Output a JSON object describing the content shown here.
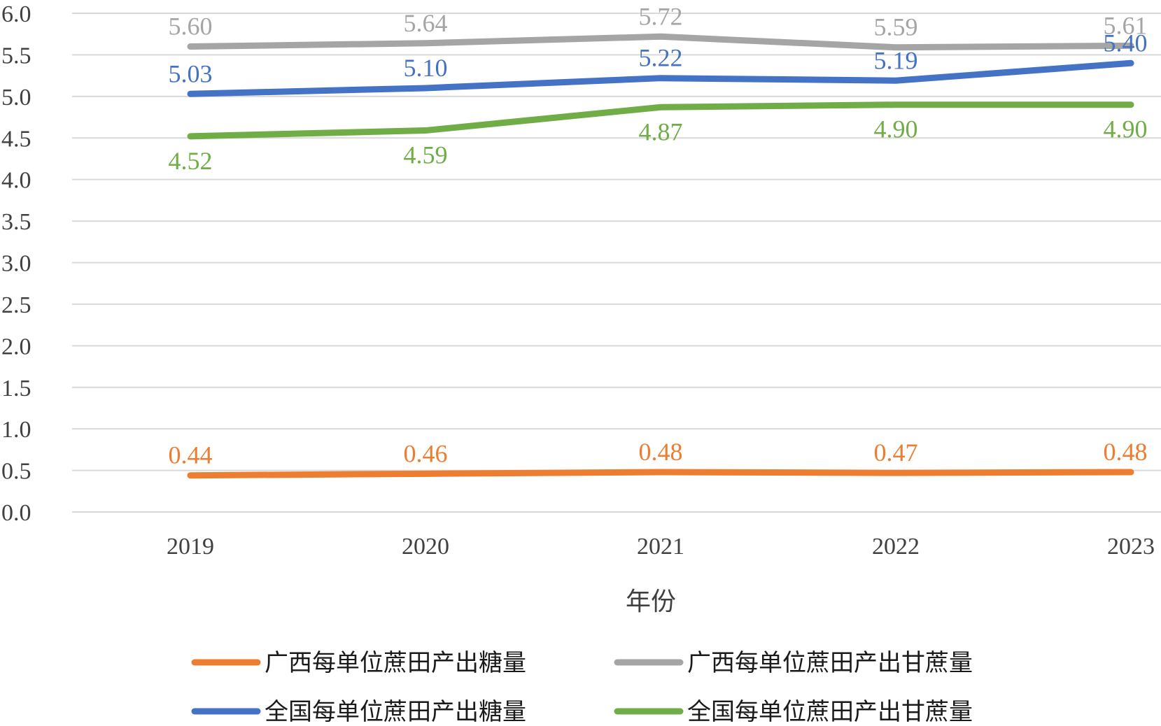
{
  "chart_data": {
    "type": "line",
    "title": "",
    "xlabel": "年份",
    "ylabel": "",
    "ylim": [
      0,
      6
    ],
    "ytick_step": 0.5,
    "yticks": [
      "0.0",
      "0.5",
      "1.0",
      "1.5",
      "2.0",
      "2.5",
      "3.0",
      "3.5",
      "4.0",
      "4.5",
      "5.0",
      "5.5",
      "6.0"
    ],
    "categories": [
      "2019",
      "2020",
      "2021",
      "2022",
      "2023"
    ],
    "grid": true,
    "legend_position": "bottom",
    "series": [
      {
        "name": "广西每单位蔗田产出糖量",
        "color": "#ED7D31",
        "values": [
          0.44,
          0.46,
          0.48,
          0.47,
          0.48
        ],
        "labels": [
          "0.44",
          "0.46",
          "0.48",
          "0.47",
          "0.48"
        ],
        "label_position": "above"
      },
      {
        "name": "广西每单位蔗田产出甘蔗量",
        "color": "#A5A5A5",
        "values": [
          5.6,
          5.64,
          5.72,
          5.59,
          5.61
        ],
        "labels": [
          "5.60",
          "5.64",
          "5.72",
          "5.59",
          "5.61"
        ],
        "label_position": "above"
      },
      {
        "name": "全国每单位蔗田产出糖量",
        "color": "#4472C4",
        "values": [
          5.03,
          5.1,
          5.22,
          5.19,
          5.4
        ],
        "labels": [
          "5.03",
          "5.10",
          "5.22",
          "5.19",
          "5.40"
        ],
        "label_position": "above"
      },
      {
        "name": "全国每单位蔗田产出甘蔗量",
        "color": "#70AD47",
        "values": [
          4.52,
          4.59,
          4.87,
          4.9,
          4.9
        ],
        "labels": [
          "4.52",
          "4.59",
          "4.87",
          "4.90",
          "4.90"
        ],
        "label_position": "below"
      }
    ]
  }
}
